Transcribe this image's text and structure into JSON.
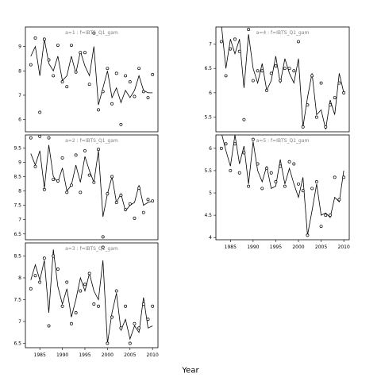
{
  "chart_data": {
    "type": "line",
    "xlabel": "Year",
    "x_ticks": [
      1985,
      1990,
      1995,
      2000,
      2005,
      2010
    ],
    "colors": {
      "line": "#000000",
      "points": "#000000",
      "title": "#808080"
    },
    "panels": [
      {
        "title": "a=1 : f=IBTS_Q1_gam",
        "ylim": [
          5.5,
          9.8
        ],
        "y_ticks": [
          6,
          7,
          8,
          9
        ],
        "fitted": {
          "x": [
            1983,
            1984,
            1985,
            1986,
            1987,
            1988,
            1989,
            1990,
            1991,
            1992,
            1993,
            1994,
            1995,
            1996,
            1997,
            1998,
            1999,
            2000,
            2001,
            2002,
            2003,
            2004,
            2005,
            2006,
            2007,
            2008,
            2009,
            2010
          ],
          "y": [
            8.6,
            9.0,
            7.8,
            9.3,
            8.3,
            8.0,
            8.6,
            7.6,
            7.8,
            8.6,
            7.9,
            8.8,
            8.2,
            7.8,
            9.0,
            6.6,
            7.3,
            8.0,
            6.9,
            7.3,
            6.7,
            7.2,
            6.9,
            7.2,
            7.8,
            7.2,
            7.1,
            7.1
          ]
        },
        "observed": {
          "x": [
            1983,
            1984,
            1985,
            1986,
            1987,
            1988,
            1989,
            1990,
            1991,
            1992,
            1993,
            1994,
            1995,
            1996,
            1997,
            1998,
            1999,
            2000,
            2001,
            2002,
            2003,
            2004,
            2005,
            2006,
            2007,
            2008,
            2009,
            2010
          ],
          "y": [
            8.25,
            9.35,
            6.3,
            9.3,
            8.45,
            7.8,
            9.05,
            7.55,
            7.35,
            9.05,
            7.95,
            8.75,
            8.75,
            7.45,
            9.55,
            6.4,
            7.15,
            8.1,
            6.65,
            7.9,
            5.8,
            7.8,
            7.55,
            6.95,
            8.1,
            7.15,
            6.9,
            7.85
          ]
        }
      },
      {
        "title": "a=2 : f=IBTS_Q1_gam",
        "ylim": [
          6.3,
          9.95
        ],
        "y_ticks": [
          6.5,
          7.0,
          7.5,
          8.0,
          8.5,
          9.0,
          9.5
        ],
        "fitted": {
          "x": [
            1983,
            1984,
            1985,
            1986,
            1987,
            1988,
            1989,
            1990,
            1991,
            1992,
            1993,
            1994,
            1995,
            1996,
            1997,
            1998,
            1999,
            2000,
            2001,
            2002,
            2003,
            2004,
            2005,
            2006,
            2007,
            2008,
            2009,
            2010
          ],
          "y": [
            9.3,
            8.9,
            9.4,
            8.1,
            9.6,
            8.5,
            8.3,
            8.8,
            8.0,
            8.2,
            8.9,
            8.3,
            9.2,
            8.7,
            8.3,
            9.4,
            7.1,
            7.9,
            8.5,
            7.6,
            7.9,
            7.3,
            7.5,
            7.6,
            8.2,
            7.5,
            7.6,
            7.65
          ]
        },
        "observed": {
          "x": [
            1983,
            1984,
            1985,
            1986,
            1987,
            1988,
            1989,
            1990,
            1991,
            1992,
            1993,
            1994,
            1995,
            1996,
            1997,
            1998,
            1999,
            2000,
            2001,
            2002,
            2003,
            2004,
            2005,
            2006,
            2007,
            2008,
            2009,
            2010
          ],
          "y": [
            9.85,
            8.85,
            9.9,
            8.05,
            9.85,
            8.4,
            8.35,
            9.15,
            7.95,
            8.2,
            9.25,
            7.95,
            9.4,
            8.55,
            8.3,
            9.45,
            6.4,
            7.9,
            8.5,
            7.6,
            7.85,
            7.35,
            7.55,
            7.05,
            8.1,
            7.25,
            7.7,
            7.65
          ]
        }
      },
      {
        "title": "a=3 : f=IBTS_Q1_gam",
        "ylim": [
          6.4,
          8.8
        ],
        "y_ticks": [
          6.5,
          7.0,
          7.5,
          8.0,
          8.5
        ],
        "fitted": {
          "x": [
            1983,
            1984,
            1985,
            1986,
            1987,
            1988,
            1989,
            1990,
            1991,
            1992,
            1993,
            1994,
            1995,
            1996,
            1997,
            1998,
            1999,
            2000,
            2001,
            2002,
            2003,
            2004,
            2005,
            2006,
            2007,
            2008,
            2009,
            2010
          ],
          "y": [
            7.95,
            8.3,
            7.95,
            8.4,
            7.2,
            8.65,
            7.8,
            7.4,
            7.75,
            7.1,
            7.5,
            8.0,
            7.7,
            8.1,
            7.7,
            7.5,
            8.4,
            6.5,
            7.2,
            7.65,
            6.8,
            7.05,
            6.6,
            6.9,
            6.75,
            7.55,
            6.85,
            6.9
          ]
        },
        "observed": {
          "x": [
            1983,
            1984,
            1985,
            1986,
            1987,
            1988,
            1989,
            1990,
            1991,
            1992,
            1993,
            1994,
            1995,
            1996,
            1997,
            1998,
            1999,
            2000,
            2001,
            2002,
            2003,
            2004,
            2005,
            2006,
            2007,
            2008,
            2009,
            2010
          ],
          "y": [
            7.75,
            8.05,
            7.9,
            8.45,
            6.9,
            8.5,
            8.2,
            7.35,
            7.9,
            6.95,
            7.2,
            7.7,
            7.85,
            8.1,
            7.4,
            7.35,
            8.7,
            6.5,
            7.1,
            7.7,
            6.85,
            7.35,
            6.5,
            6.95,
            6.85,
            7.4,
            7.05,
            7.35
          ]
        }
      },
      {
        "title": "a=4 : f=IBTS_Q1_gam",
        "ylim": [
          5.2,
          7.35
        ],
        "y_ticks": [
          5.5,
          6.0,
          6.5,
          7.0
        ],
        "fitted": {
          "x": [
            1983,
            1984,
            1985,
            1986,
            1987,
            1988,
            1989,
            1990,
            1991,
            1992,
            1993,
            1994,
            1995,
            1996,
            1997,
            1998,
            1999,
            2000,
            2001,
            2002,
            2003,
            2004,
            2005,
            2006,
            2007,
            2008,
            2009,
            2010
          ],
          "y": [
            7.4,
            6.5,
            7.1,
            6.8,
            7.1,
            6.1,
            7.2,
            6.5,
            6.2,
            6.6,
            6.05,
            6.25,
            6.75,
            6.2,
            6.7,
            6.4,
            6.2,
            6.7,
            5.3,
            5.9,
            6.4,
            5.55,
            5.65,
            5.25,
            5.85,
            5.55,
            6.4,
            6.0
          ]
        },
        "observed": {
          "x": [
            1983,
            1984,
            1985,
            1986,
            1987,
            1988,
            1989,
            1990,
            1991,
            1992,
            1993,
            1994,
            1995,
            1996,
            1997,
            1998,
            1999,
            2000,
            2001,
            2002,
            2003,
            2004,
            2005,
            2006,
            2007,
            2008,
            2009,
            2010
          ],
          "y": [
            7.05,
            6.35,
            6.9,
            7.1,
            6.85,
            5.45,
            7.3,
            6.25,
            6.45,
            6.45,
            6.05,
            6.4,
            6.55,
            6.25,
            6.5,
            6.5,
            6.45,
            7.05,
            5.3,
            5.75,
            6.35,
            5.5,
            6.2,
            5.3,
            5.75,
            5.9,
            6.2,
            6.0
          ]
        }
      },
      {
        "title": "a=5 : f=IBTS_Q1_gam",
        "ylim": [
          3.95,
          6.3
        ],
        "y_ticks": [
          4.0,
          4.5,
          5.0,
          5.5,
          6.0
        ],
        "fitted": {
          "x": [
            1983,
            1984,
            1985,
            1986,
            1987,
            1988,
            1989,
            1990,
            1991,
            1992,
            1993,
            1994,
            1995,
            1996,
            1997,
            1998,
            1999,
            2000,
            2001,
            2002,
            2003,
            2004,
            2005,
            2006,
            2007,
            2008,
            2009,
            2010
          ],
          "y": [
            6.35,
            5.95,
            5.6,
            6.3,
            5.65,
            6.05,
            5.2,
            6.15,
            5.5,
            5.25,
            5.6,
            5.1,
            5.15,
            5.75,
            5.2,
            5.55,
            5.2,
            4.9,
            5.35,
            4.05,
            4.6,
            5.2,
            4.5,
            4.55,
            4.45,
            4.9,
            4.8,
            5.5
          ]
        },
        "observed": {
          "x": [
            1983,
            1984,
            1985,
            1986,
            1987,
            1988,
            1989,
            1990,
            1991,
            1992,
            1993,
            1994,
            1995,
            1996,
            1997,
            1998,
            1999,
            2000,
            2001,
            2002,
            2003,
            2004,
            2005,
            2006,
            2007,
            2008,
            2009,
            2010
          ],
          "y": [
            6.0,
            6.1,
            5.5,
            6.1,
            5.45,
            5.9,
            5.15,
            6.2,
            5.65,
            5.1,
            5.55,
            5.45,
            5.25,
            5.6,
            5.15,
            5.7,
            5.65,
            5.2,
            5.05,
            4.05,
            5.1,
            5.25,
            4.25,
            4.5,
            4.5,
            5.35,
            4.85,
            5.35
          ]
        }
      }
    ]
  }
}
